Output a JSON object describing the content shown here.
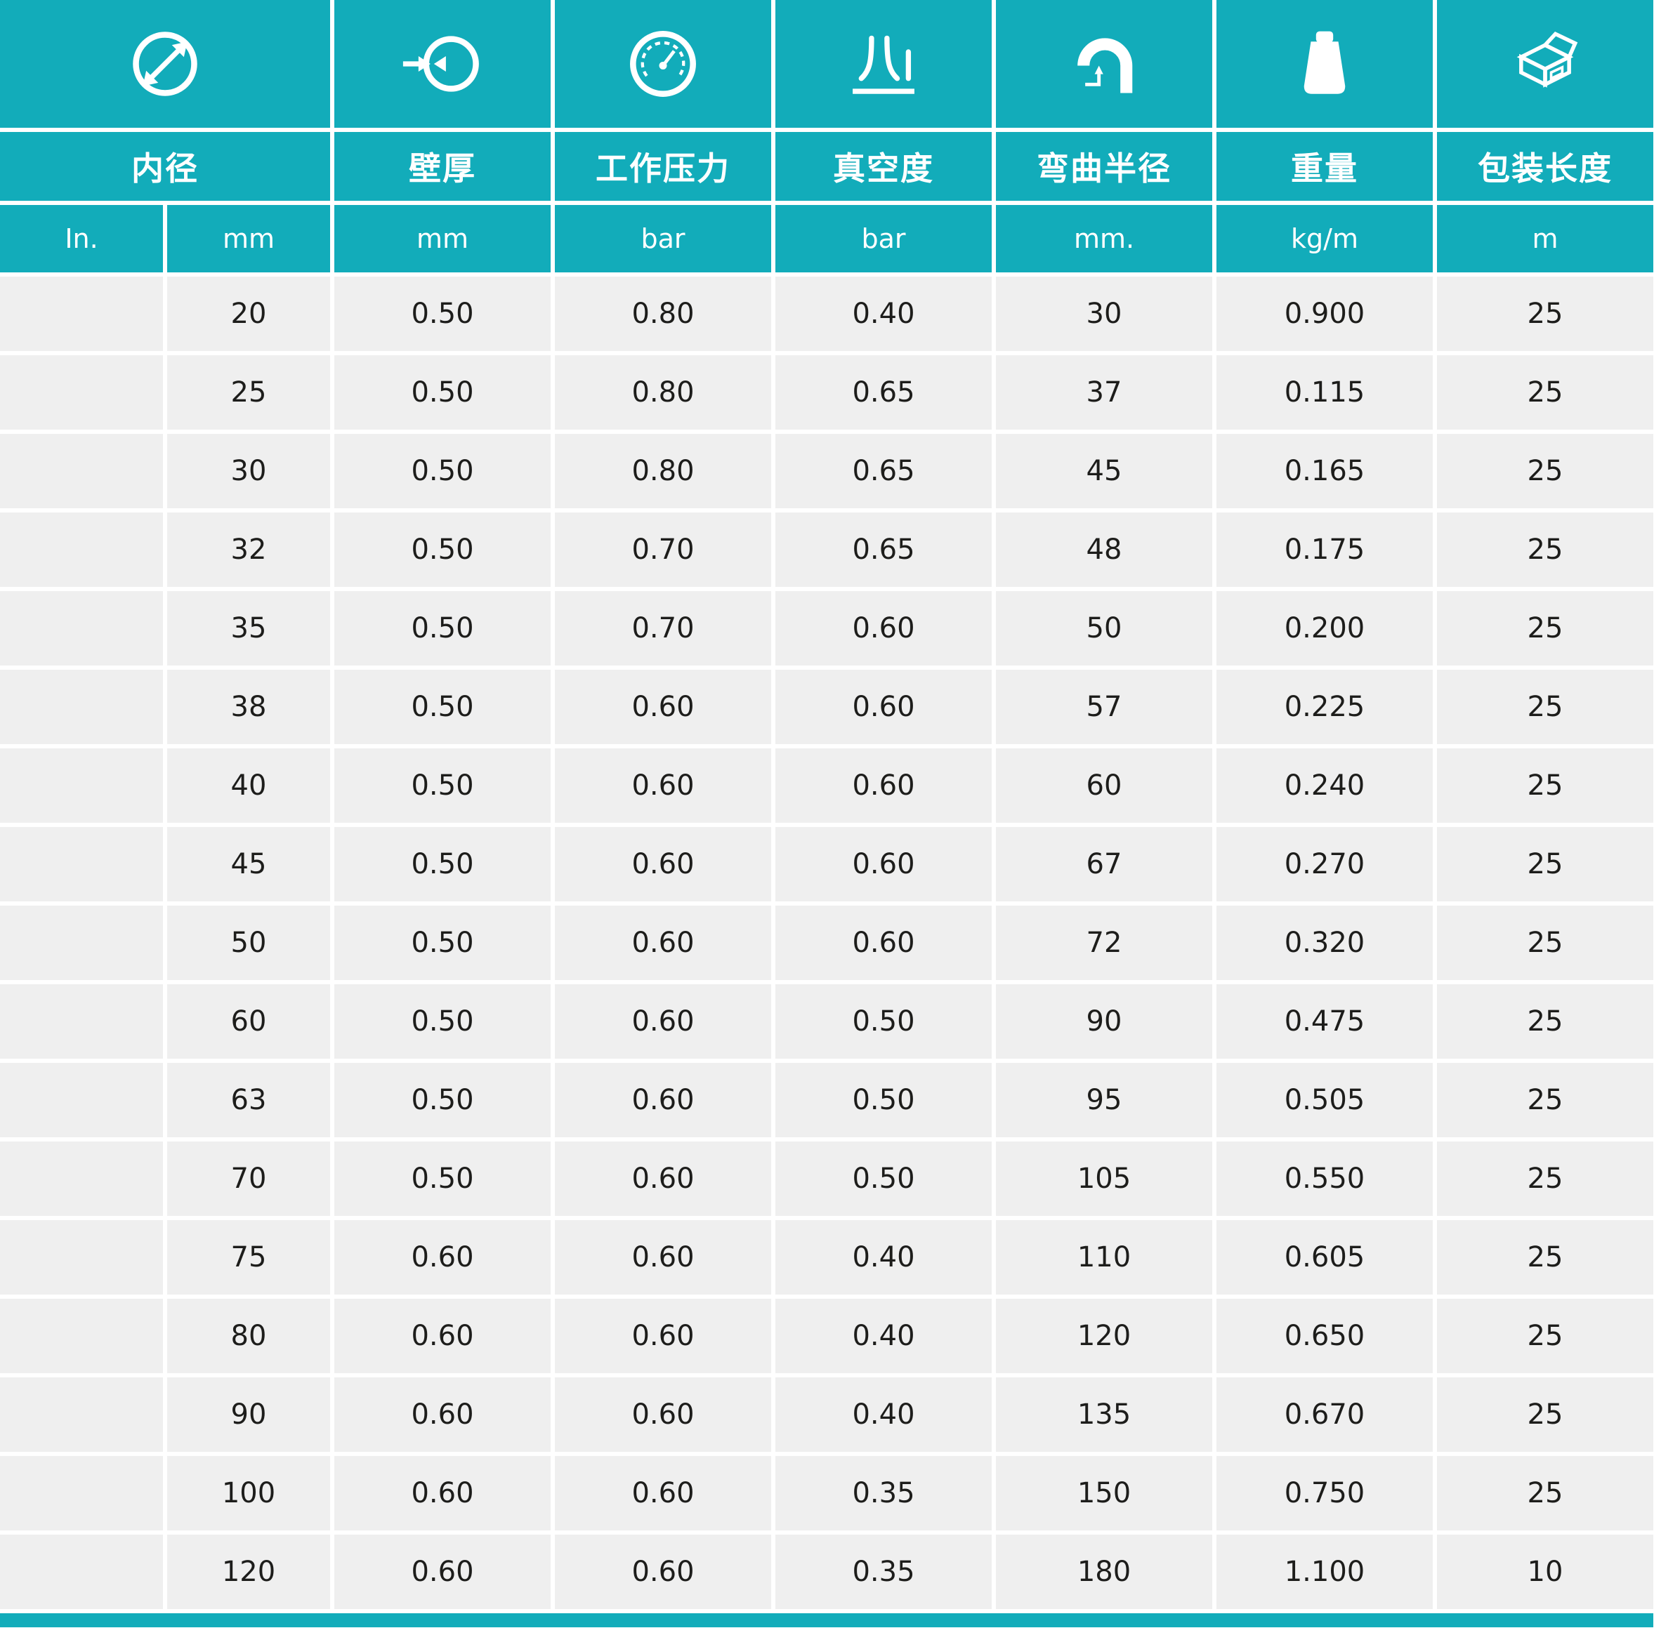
{
  "colors": {
    "teal": "#12acba",
    "row_bg": "#efefef",
    "text": "#1d1d1b",
    "header_text": "#ffffff"
  },
  "table": {
    "columns": [
      {
        "label": "内径",
        "icon": "diameter-icon"
      },
      {
        "label": "壁厚",
        "icon": "wall-thickness-icon"
      },
      {
        "label": "工作压力",
        "icon": "pressure-gauge-icon"
      },
      {
        "label": "真空度",
        "icon": "vacuum-icon"
      },
      {
        "label": "弯曲半径",
        "icon": "bend-radius-icon"
      },
      {
        "label": "重量",
        "icon": "weight-icon"
      },
      {
        "label": "包装长度",
        "icon": "package-box-icon"
      }
    ],
    "units": [
      "In.",
      "mm",
      "mm",
      "bar",
      "bar",
      "mm.",
      "kg/m",
      "m"
    ],
    "column_keys": [
      "id-in",
      "id-mm",
      "wall-thickness",
      "working-pressure",
      "vacuum",
      "bend-radius",
      "weight",
      "pack-length"
    ],
    "rows": [
      [
        "",
        "20",
        "0.50",
        "0.80",
        "0.40",
        "30",
        "0.900",
        "25"
      ],
      [
        "",
        "25",
        "0.50",
        "0.80",
        "0.65",
        "37",
        "0.115",
        "25"
      ],
      [
        "",
        "30",
        "0.50",
        "0.80",
        "0.65",
        "45",
        "0.165",
        "25"
      ],
      [
        "",
        "32",
        "0.50",
        "0.70",
        "0.65",
        "48",
        "0.175",
        "25"
      ],
      [
        "",
        "35",
        "0.50",
        "0.70",
        "0.60",
        "50",
        "0.200",
        "25"
      ],
      [
        "",
        "38",
        "0.50",
        "0.60",
        "0.60",
        "57",
        "0.225",
        "25"
      ],
      [
        "",
        "40",
        "0.50",
        "0.60",
        "0.60",
        "60",
        "0.240",
        "25"
      ],
      [
        "",
        "45",
        "0.50",
        "0.60",
        "0.60",
        "67",
        "0.270",
        "25"
      ],
      [
        "",
        "50",
        "0.50",
        "0.60",
        "0.60",
        "72",
        "0.320",
        "25"
      ],
      [
        "",
        "60",
        "0.50",
        "0.60",
        "0.50",
        "90",
        "0.475",
        "25"
      ],
      [
        "",
        "63",
        "0.50",
        "0.60",
        "0.50",
        "95",
        "0.505",
        "25"
      ],
      [
        "",
        "70",
        "0.50",
        "0.60",
        "0.50",
        "105",
        "0.550",
        "25"
      ],
      [
        "",
        "75",
        "0.60",
        "0.60",
        "0.40",
        "110",
        "0.605",
        "25"
      ],
      [
        "",
        "80",
        "0.60",
        "0.60",
        "0.40",
        "120",
        "0.650",
        "25"
      ],
      [
        "",
        "90",
        "0.60",
        "0.60",
        "0.40",
        "135",
        "0.670",
        "25"
      ],
      [
        "",
        "100",
        "0.60",
        "0.60",
        "0.35",
        "150",
        "0.750",
        "25"
      ],
      [
        "",
        "120",
        "0.60",
        "0.60",
        "0.35",
        "180",
        "1.100",
        "10"
      ]
    ]
  }
}
